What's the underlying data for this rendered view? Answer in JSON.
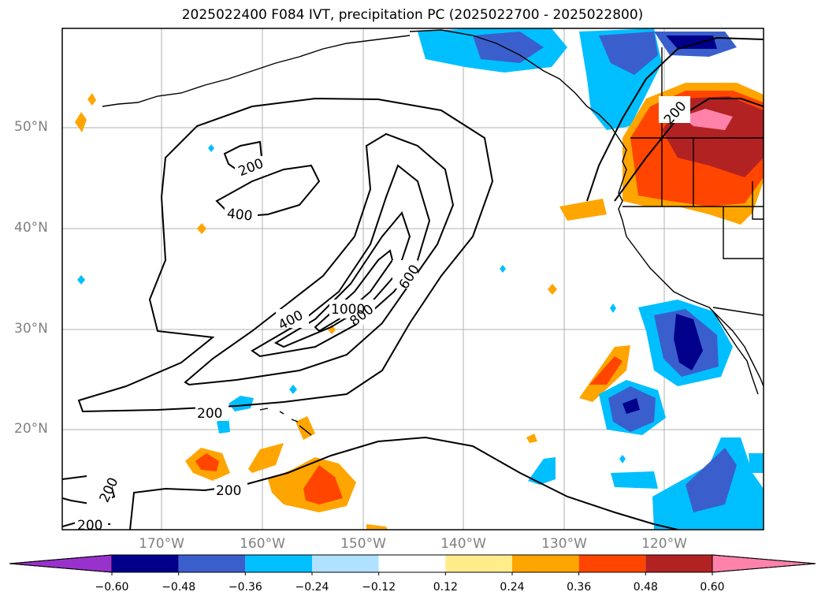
{
  "title": "2025022400 F084 IVT, precipitation PC (2025022700 - 2025022800)",
  "lat_labels": [
    "50°N",
    "40°N",
    "30°N",
    "20°N"
  ],
  "lon_labels": [
    "170°W",
    "160°W",
    "150°W",
    "140°W",
    "130°W",
    "120°W"
  ],
  "contour_labels": [
    "200",
    "400",
    "600",
    "800",
    "1000",
    "200",
    "200",
    "200",
    "200",
    "200",
    "400"
  ],
  "colorbar": {
    "ticks": [
      "−0.60",
      "−0.48",
      "−0.36",
      "−0.24",
      "−0.12",
      "0.12",
      "0.24",
      "0.36",
      "0.48",
      "0.60"
    ],
    "colors": [
      "#9932cc",
      "#00008b",
      "#3a5fcd",
      "#00bfff",
      "#b0e2ff",
      "#ffffff",
      "#ffec8b",
      "#ffa500",
      "#ff4500",
      "#b22222",
      "#ff82ab"
    ]
  }
}
